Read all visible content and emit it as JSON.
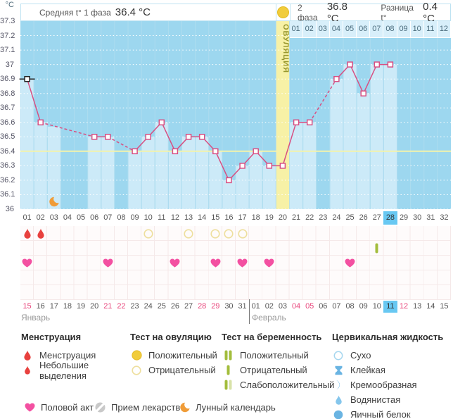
{
  "header": {
    "unit_label": "°C",
    "phase1_label": "Средняя t° 1 фаза",
    "phase1_value": "36.4 °C",
    "phase2_label": "2 фаза",
    "phase2_value": "36.8 °C",
    "diff_label": "Разница t°",
    "diff_value": "0.4 °C"
  },
  "chart_data": {
    "type": "line",
    "ylabel": "°C",
    "ylim": [
      36.0,
      37.3
    ],
    "ytick_labels": [
      "37.3",
      "37.2",
      "37.1",
      "37",
      "36.9",
      "36.8",
      "36.7",
      "36.6",
      "36.5",
      "36.4",
      "36.3",
      "36.2",
      "36.1",
      "36"
    ],
    "coverline_value": 36.4,
    "cycle_days": 32,
    "temps": [
      36.9,
      36.6,
      null,
      null,
      null,
      36.5,
      36.5,
      null,
      36.4,
      36.5,
      36.6,
      36.4,
      36.5,
      36.5,
      36.4,
      36.2,
      36.3,
      36.4,
      36.3,
      36.3,
      36.6,
      36.6,
      null,
      36.9,
      37.0,
      36.8,
      37.0,
      37.0,
      null,
      null,
      null,
      null
    ],
    "interpolated_bar": {
      "day": 3,
      "value": 36.57
    },
    "ovulation": {
      "day": 20,
      "label": "ОВУЛЯЦИЯ"
    },
    "dpo_labels": [
      "01",
      "02",
      "03",
      "04",
      "05",
      "06",
      "07",
      "08",
      "09",
      "10",
      "11",
      "12"
    ],
    "current_day": 28,
    "moon_day": 3,
    "grid": "dotted-horizontal"
  },
  "day_numbers": [
    "01",
    "02",
    "03",
    "04",
    "05",
    "06",
    "07",
    "08",
    "09",
    "10",
    "11",
    "12",
    "13",
    "14",
    "15",
    "16",
    "17",
    "18",
    "19",
    "20",
    "21",
    "22",
    "23",
    "24",
    "25",
    "26",
    "27",
    "28",
    "29",
    "30",
    "31",
    "32"
  ],
  "event_rows": [
    {
      "row": 0,
      "icon": "menstruation-drop",
      "days": [
        1,
        2
      ]
    },
    {
      "row": 0,
      "icon": "ovulation-test-negative",
      "days": [
        10,
        13,
        15,
        16,
        17
      ]
    },
    {
      "row": 1,
      "icon": "pregnancy-test-negative",
      "days": [
        27
      ]
    },
    {
      "row": 2,
      "icon": "intercourse-heart",
      "days": [
        1,
        7,
        12,
        15,
        17,
        19,
        25
      ]
    }
  ],
  "calendar": {
    "months": [
      {
        "name": "Январь",
        "dates": [
          "15",
          "16",
          "17",
          "18",
          "19",
          "20",
          "21",
          "22",
          "23",
          "24",
          "25",
          "26",
          "27",
          "28",
          "29",
          "30",
          "31"
        ],
        "red": [
          "15",
          "21",
          "22",
          "28",
          "29"
        ],
        "highlight": null
      },
      {
        "name": "Февраль",
        "dates": [
          "01",
          "02",
          "03",
          "04",
          "05",
          "06",
          "07",
          "08",
          "09",
          "10",
          "11",
          "12",
          "13",
          "14",
          "15"
        ],
        "red": [
          "04",
          "05",
          "12"
        ],
        "highlight": "11"
      }
    ]
  },
  "legend": {
    "groups": [
      {
        "title": "Менструация",
        "items": [
          {
            "icon": "menstruation-drop",
            "label": "Менструация"
          },
          {
            "icon": "spotting-drop",
            "label": "Небольшие выделения"
          }
        ]
      },
      {
        "title": "Тест на овуляцию",
        "items": [
          {
            "icon": "ovulation-test-positive",
            "label": "Положительный"
          },
          {
            "icon": "ovulation-test-negative",
            "label": "Отрицательный"
          }
        ]
      },
      {
        "title": "Тест на беременность",
        "items": [
          {
            "icon": "pregnancy-test-positive",
            "label": "Положительный"
          },
          {
            "icon": "pregnancy-test-negative",
            "label": "Отрицательный"
          },
          {
            "icon": "pregnancy-test-weak",
            "label": "Слабоположительный"
          }
        ]
      },
      {
        "title": "Цервикальная жидкость",
        "items": [
          {
            "icon": "cf-dry",
            "label": "Сухо"
          },
          {
            "icon": "cf-sticky",
            "label": "Клейкая"
          },
          {
            "icon": "cf-creamy",
            "label": "Кремообразная"
          },
          {
            "icon": "cf-watery",
            "label": "Водянистая"
          },
          {
            "icon": "cf-eggwhite",
            "label": "Яичный белок"
          }
        ]
      }
    ],
    "footer_items": [
      {
        "icon": "intercourse-heart",
        "label": "Половой акт"
      },
      {
        "icon": "medication",
        "label": "Прием лекарств"
      },
      {
        "icon": "lunar",
        "label": "Лунный календарь"
      }
    ]
  },
  "colors": {
    "chart_bg": "#9dd7ef",
    "bar": "#cceaf8",
    "separator": "#b3ddef",
    "band": "#f7f1a6",
    "band_text": "#97972f",
    "coverline": "#f3f3ab",
    "line": "#d84f82",
    "first_marker": "#222222",
    "grid_dot": "#ffffff",
    "dpo_bg": "#d8effa",
    "highlight": "#68c8f2",
    "weekend_red": "#e8467c",
    "menstruation": "#e8413e",
    "heart": "#f350a1",
    "test_yellow": "#f1cc3b",
    "test_yellow_open": "#eedf9e",
    "pregnancy_green": "#a3bd3c",
    "pregnancy_pale": "#d8e2a8",
    "fluid_blue": "#6ab4e2",
    "fluid_light": "#85c6ec",
    "fluid_outline": "#a5d6ef",
    "medication_gray": "#c9c9c9",
    "moon_orange": "#f09c38"
  }
}
